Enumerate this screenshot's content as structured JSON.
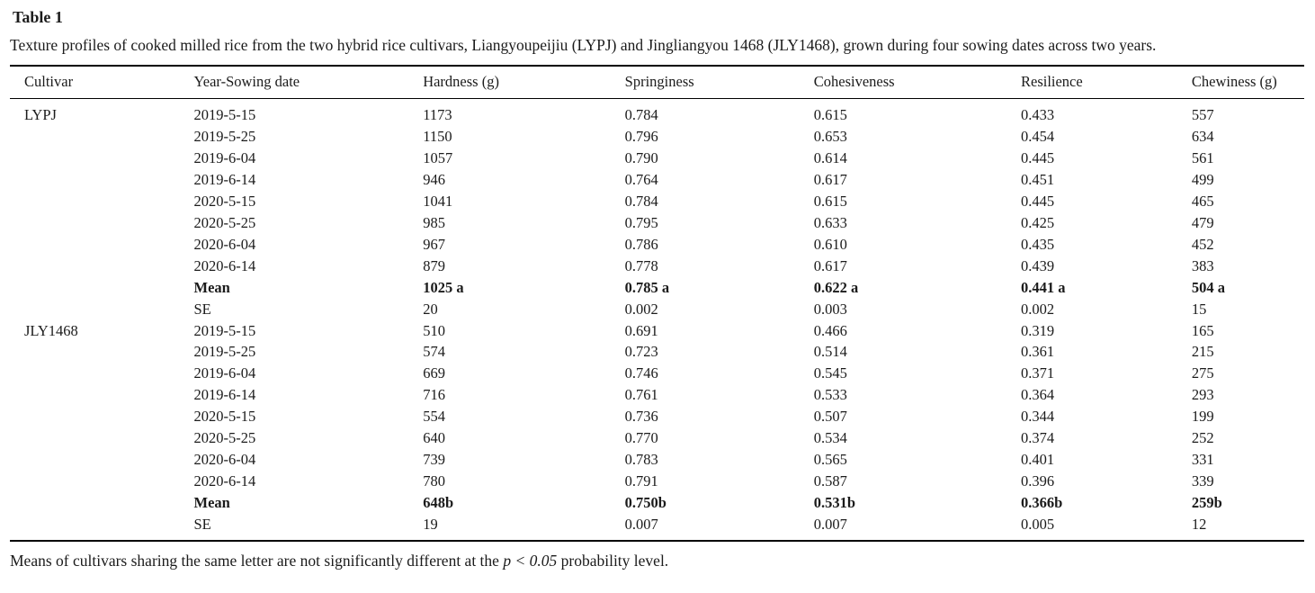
{
  "title": "Table 1",
  "caption": "Texture profiles of cooked milled rice from the two hybrid rice cultivars, Liangyoupeijiu (LYPJ) and Jingliangyou 1468 (JLY1468), grown during four sowing dates across two years.",
  "footnote": {
    "prefix": "Means of cultivars sharing the same letter are not significantly different at the ",
    "italic": "p < 0.05",
    "suffix": " probability level."
  },
  "table": {
    "columns": [
      "Cultivar",
      "Year-Sowing date",
      "Hardness (g)",
      "Springiness",
      "Cohesiveness",
      "Resilience",
      "Chewiness (g)"
    ],
    "column_keys": [
      "cultivar",
      "year-sowing-date",
      "hardness",
      "springiness",
      "cohesiveness",
      "resilience",
      "chewiness"
    ],
    "rows": [
      {
        "bold": false,
        "c": [
          "LYPJ",
          "2019-5-15",
          "1173",
          "0.784",
          "0.615",
          "0.433",
          "557"
        ]
      },
      {
        "bold": false,
        "c": [
          "",
          "2019-5-25",
          "1150",
          "0.796",
          "0.653",
          "0.454",
          "634"
        ]
      },
      {
        "bold": false,
        "c": [
          "",
          "2019-6-04",
          "1057",
          "0.790",
          "0.614",
          "0.445",
          "561"
        ]
      },
      {
        "bold": false,
        "c": [
          "",
          "2019-6-14",
          "946",
          "0.764",
          "0.617",
          "0.451",
          "499"
        ]
      },
      {
        "bold": false,
        "c": [
          "",
          "2020-5-15",
          "1041",
          "0.784",
          "0.615",
          "0.445",
          "465"
        ]
      },
      {
        "bold": false,
        "c": [
          "",
          "2020-5-25",
          "985",
          "0.795",
          "0.633",
          "0.425",
          "479"
        ]
      },
      {
        "bold": false,
        "c": [
          "",
          "2020-6-04",
          "967",
          "0.786",
          "0.610",
          "0.435",
          "452"
        ]
      },
      {
        "bold": false,
        "c": [
          "",
          "2020-6-14",
          "879",
          "0.778",
          "0.617",
          "0.439",
          "383"
        ]
      },
      {
        "bold": true,
        "c": [
          "",
          "Mean",
          "1025 a",
          "0.785 a",
          "0.622 a",
          "0.441 a",
          "504 a"
        ]
      },
      {
        "bold": false,
        "c": [
          "",
          "SE",
          "20",
          "0.002",
          "0.003",
          "0.002",
          "15"
        ]
      },
      {
        "bold": false,
        "c": [
          "JLY1468",
          "2019-5-15",
          "510",
          "0.691",
          "0.466",
          "0.319",
          "165"
        ]
      },
      {
        "bold": false,
        "c": [
          "",
          "2019-5-25",
          "574",
          "0.723",
          "0.514",
          "0.361",
          "215"
        ]
      },
      {
        "bold": false,
        "c": [
          "",
          "2019-6-04",
          "669",
          "0.746",
          "0.545",
          "0.371",
          "275"
        ]
      },
      {
        "bold": false,
        "c": [
          "",
          "2019-6-14",
          "716",
          "0.761",
          "0.533",
          "0.364",
          "293"
        ]
      },
      {
        "bold": false,
        "c": [
          "",
          "2020-5-15",
          "554",
          "0.736",
          "0.507",
          "0.344",
          "199"
        ]
      },
      {
        "bold": false,
        "c": [
          "",
          "2020-5-25",
          "640",
          "0.770",
          "0.534",
          "0.374",
          "252"
        ]
      },
      {
        "bold": false,
        "c": [
          "",
          "2020-6-04",
          "739",
          "0.783",
          "0.565",
          "0.401",
          "331"
        ]
      },
      {
        "bold": false,
        "c": [
          "",
          "2020-6-14",
          "780",
          "0.791",
          "0.587",
          "0.396",
          "339"
        ]
      },
      {
        "bold": true,
        "c": [
          "",
          "Mean",
          "648b",
          "0.750b",
          "0.531b",
          "0.366b",
          "259b"
        ]
      },
      {
        "bold": false,
        "c": [
          "",
          "SE",
          "19",
          "0.007",
          "0.007",
          "0.005",
          "12"
        ]
      }
    ]
  }
}
